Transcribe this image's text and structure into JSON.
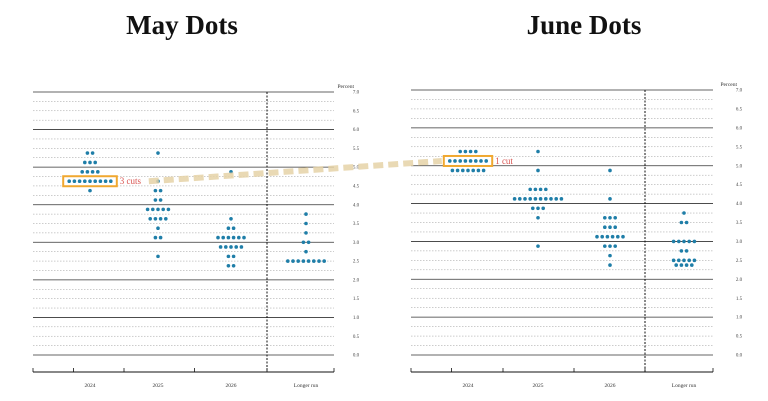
{
  "titles": {
    "left": "May Dots",
    "right": "June Dots"
  },
  "colors": {
    "dot": "#1f7ea8",
    "highlight_box": "#f0a830",
    "annotation_text": "#d9534f",
    "connector": "#e6d3a8",
    "grid_solid": "#333333",
    "grid_dashed": "#9a9a9a"
  },
  "annotations": {
    "left": "3 cuts",
    "right": "1 cut"
  },
  "chart_data": [
    {
      "type": "scatter",
      "title": "May Dots",
      "ylabel": "Percent",
      "ylim": [
        0,
        7.0
      ],
      "yticks": [
        "0.0",
        "0.5",
        "1.0",
        "1.5",
        "2.0",
        "2.5",
        "3.0",
        "3.5",
        "4.0",
        "4.5",
        "5.0",
        "5.5",
        "6.0",
        "6.5",
        "7.0"
      ],
      "categories": [
        "2024",
        "2025",
        "2026",
        "Longer run"
      ],
      "highlight": {
        "category": "2024",
        "y": 4.625,
        "label": "3 cuts"
      },
      "dots": [
        {
          "category": "2024",
          "y": 5.375,
          "count": 2
        },
        {
          "category": "2024",
          "y": 5.125,
          "count": 3
        },
        {
          "category": "2024",
          "y": 4.875,
          "count": 4
        },
        {
          "category": "2024",
          "y": 4.625,
          "count": 9
        },
        {
          "category": "2024",
          "y": 4.375,
          "count": 1
        },
        {
          "category": "2025",
          "y": 5.375,
          "count": 1
        },
        {
          "category": "2025",
          "y": 4.625,
          "count": 1
        },
        {
          "category": "2025",
          "y": 4.375,
          "count": 2
        },
        {
          "category": "2025",
          "y": 4.125,
          "count": 2
        },
        {
          "category": "2025",
          "y": 3.875,
          "count": 5
        },
        {
          "category": "2025",
          "y": 3.625,
          "count": 4
        },
        {
          "category": "2025",
          "y": 3.375,
          "count": 1
        },
        {
          "category": "2025",
          "y": 3.125,
          "count": 2
        },
        {
          "category": "2025",
          "y": 2.625,
          "count": 1
        },
        {
          "category": "2026",
          "y": 4.875,
          "count": 1
        },
        {
          "category": "2026",
          "y": 3.625,
          "count": 1
        },
        {
          "category": "2026",
          "y": 3.375,
          "count": 2
        },
        {
          "category": "2026",
          "y": 3.125,
          "count": 6
        },
        {
          "category": "2026",
          "y": 2.875,
          "count": 5
        },
        {
          "category": "2026",
          "y": 2.625,
          "count": 2
        },
        {
          "category": "2026",
          "y": 2.375,
          "count": 2
        },
        {
          "category": "Longer run",
          "y": 3.75,
          "count": 1
        },
        {
          "category": "Longer run",
          "y": 3.5,
          "count": 1
        },
        {
          "category": "Longer run",
          "y": 3.25,
          "count": 1
        },
        {
          "category": "Longer run",
          "y": 3.0,
          "count": 2
        },
        {
          "category": "Longer run",
          "y": 2.75,
          "count": 1
        },
        {
          "category": "Longer run",
          "y": 2.5,
          "count": 8
        }
      ]
    },
    {
      "type": "scatter",
      "title": "June Dots",
      "ylabel": "Percent",
      "ylim": [
        0,
        7.0
      ],
      "yticks": [
        "0.0",
        "0.5",
        "1.0",
        "1.5",
        "2.0",
        "2.5",
        "3.0",
        "3.5",
        "4.0",
        "4.5",
        "5.0",
        "5.5",
        "6.0",
        "6.5",
        "7.0"
      ],
      "categories": [
        "2024",
        "2025",
        "2026",
        "Longer run"
      ],
      "highlight": {
        "category": "2024",
        "y": 5.125,
        "label": "1 cut"
      },
      "dots": [
        {
          "category": "2024",
          "y": 5.375,
          "count": 4
        },
        {
          "category": "2024",
          "y": 5.125,
          "count": 8
        },
        {
          "category": "2024",
          "y": 4.875,
          "count": 7
        },
        {
          "category": "2025",
          "y": 5.375,
          "count": 1
        },
        {
          "category": "2025",
          "y": 4.875,
          "count": 1
        },
        {
          "category": "2025",
          "y": 4.375,
          "count": 4
        },
        {
          "category": "2025",
          "y": 4.125,
          "count": 10
        },
        {
          "category": "2025",
          "y": 3.875,
          "count": 3
        },
        {
          "category": "2025",
          "y": 3.625,
          "count": 1
        },
        {
          "category": "2025",
          "y": 2.875,
          "count": 1
        },
        {
          "category": "2026",
          "y": 4.875,
          "count": 1
        },
        {
          "category": "2026",
          "y": 4.125,
          "count": 1
        },
        {
          "category": "2026",
          "y": 3.625,
          "count": 3
        },
        {
          "category": "2026",
          "y": 3.375,
          "count": 3
        },
        {
          "category": "2026",
          "y": 3.125,
          "count": 6
        },
        {
          "category": "2026",
          "y": 2.875,
          "count": 3
        },
        {
          "category": "2026",
          "y": 2.625,
          "count": 1
        },
        {
          "category": "2026",
          "y": 2.375,
          "count": 1
        },
        {
          "category": "Longer run",
          "y": 3.75,
          "count": 1
        },
        {
          "category": "Longer run",
          "y": 3.5,
          "count": 2
        },
        {
          "category": "Longer run",
          "y": 3.0,
          "count": 5
        },
        {
          "category": "Longer run",
          "y": 2.75,
          "count": 2
        },
        {
          "category": "Longer run",
          "y": 2.5,
          "count": 5
        },
        {
          "category": "Longer run",
          "y": 2.375,
          "count": 4
        }
      ]
    }
  ]
}
